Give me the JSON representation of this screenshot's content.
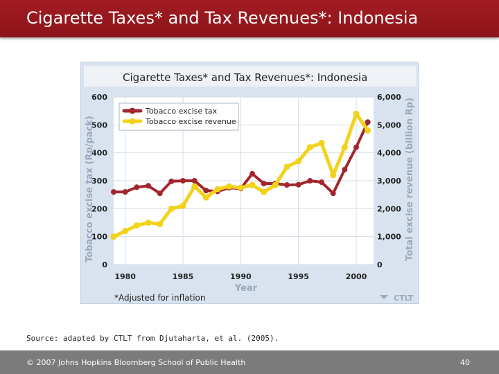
{
  "slide": {
    "title": "Cigarette Taxes* and Tax Revenues*: Indonesia",
    "source": "Source: adapted by CTLT from Djutaharta, et al. (2005).",
    "footer": "© 2007 Johns Hopkins Bloomberg School of Public Health",
    "page_number": "40",
    "title_bar_color": "#9a1a20",
    "footer_bar_color": "#7b7b7b"
  },
  "chart_data": {
    "type": "line",
    "title": "Cigarette Taxes* and Tax Revenues*: Indonesia",
    "xlabel": "Year",
    "ylabel_left": "Tobacco excise tax (Rp/pack)",
    "ylabel_right": "Total excise revenue (billion Rp)",
    "footnote": "*Adjusted for inflation",
    "credit": "CTLT",
    "legend_position": "top-left",
    "grid": true,
    "xlim": [
      1979,
      2001.5
    ],
    "ylim_left": [
      0,
      600
    ],
    "ylim_right": [
      0,
      6000
    ],
    "x_ticks": [
      "1980",
      "1985",
      "1990",
      "1995",
      "2000"
    ],
    "x_tick_values": [
      1980,
      1985,
      1990,
      1995,
      2000
    ],
    "y_ticks_left": [
      "0",
      "100",
      "200",
      "300",
      "400",
      "500",
      "600"
    ],
    "y_tick_values_left": [
      0,
      100,
      200,
      300,
      400,
      500,
      600
    ],
    "y_ticks_right": [
      "0",
      "1,000",
      "2,000",
      "3,000",
      "4,000",
      "5,000",
      "6,000"
    ],
    "y_tick_values_right": [
      0,
      1000,
      2000,
      3000,
      4000,
      5000,
      6000
    ],
    "series": [
      {
        "name": "Tobacco excise tax",
        "axis": "left",
        "color": "#a3262c",
        "x": [
          1979,
          1980,
          1981,
          1982,
          1983,
          1984,
          1985,
          1986,
          1987,
          1988,
          1989,
          1990,
          1991,
          1992,
          1993,
          1994,
          1995,
          1996,
          1997,
          1998,
          1999,
          2000,
          2001
        ],
        "values": [
          260,
          260,
          277,
          282,
          255,
          298,
          300,
          300,
          265,
          262,
          275,
          272,
          325,
          290,
          290,
          285,
          286,
          300,
          295,
          255,
          340,
          420,
          510
        ]
      },
      {
        "name": "Tobacco excise revenue",
        "axis": "right",
        "color": "#f2d21b",
        "x": [
          1979,
          1980,
          1981,
          1982,
          1983,
          1984,
          1985,
          1986,
          1987,
          1988,
          1989,
          1990,
          1991,
          1992,
          1993,
          1994,
          1995,
          1996,
          1997,
          1998,
          1999,
          2000,
          2001
        ],
        "values": [
          1000,
          1200,
          1400,
          1500,
          1450,
          2000,
          2100,
          2800,
          2400,
          2700,
          2800,
          2750,
          2850,
          2600,
          2850,
          3500,
          3700,
          4200,
          4350,
          3200,
          4200,
          5400,
          4800
        ]
      }
    ]
  }
}
